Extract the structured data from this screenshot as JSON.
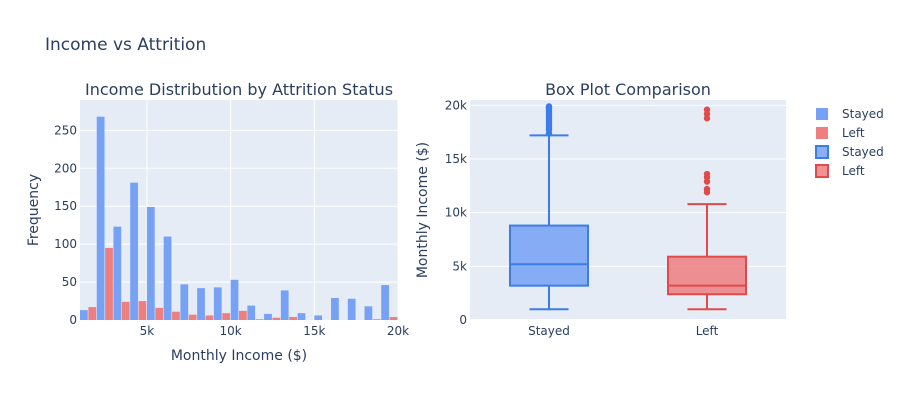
{
  "title": "Income vs Attrition",
  "legend": {
    "position": "right",
    "entries": [
      {
        "label": "Stayed",
        "kind": "histogram",
        "color": "#636efa"
      },
      {
        "label": "Left",
        "kind": "histogram",
        "color": "#ef553b"
      },
      {
        "label": "Stayed",
        "kind": "box",
        "color": "#636efa"
      },
      {
        "label": "Left",
        "kind": "box",
        "color": "#ef553b"
      }
    ]
  },
  "colors": {
    "stayed_fill": "#76a1f4",
    "stayed_stroke": "#3d7de8",
    "left_fill": "#ee7f80",
    "left_stroke": "#e04a4a",
    "plot_bg": "#e5ecf6",
    "grid": "#ffffff"
  },
  "chart_data": [
    {
      "type": "histogram",
      "title": "Income Distribution by Attrition Status",
      "xlabel": "Monthly Income ($)",
      "ylabel": "Frequency",
      "xlim": [
        1000,
        20000
      ],
      "ylim": [
        0,
        290
      ],
      "x_ticks": [
        {
          "value": 5000,
          "label": "5k"
        },
        {
          "value": 10000,
          "label": "10k"
        },
        {
          "value": 15000,
          "label": "15k"
        },
        {
          "value": 20000,
          "label": "20k"
        }
      ],
      "y_ticks": [
        {
          "value": 0,
          "label": "0"
        },
        {
          "value": 50,
          "label": "50"
        },
        {
          "value": 100,
          "label": "100"
        },
        {
          "value": 150,
          "label": "150"
        },
        {
          "value": 200,
          "label": "200"
        },
        {
          "value": 250,
          "label": "250"
        }
      ],
      "bin_starts": [
        1000,
        2000,
        3000,
        4000,
        5000,
        6000,
        7000,
        8000,
        9000,
        10000,
        11000,
        12000,
        13000,
        14000,
        15000,
        16000,
        17000,
        18000,
        19000
      ],
      "bin_width": 1000,
      "series": [
        {
          "name": "Stayed",
          "values": [
            13,
            268,
            123,
            181,
            149,
            110,
            47,
            42,
            43,
            53,
            19,
            8,
            39,
            9,
            6,
            29,
            28,
            18,
            46
          ]
        },
        {
          "name": "Left",
          "values": [
            17,
            95,
            24,
            25,
            16,
            11,
            7,
            6,
            9,
            12,
            1,
            3,
            4,
            0,
            0,
            0,
            0,
            1,
            4
          ]
        }
      ]
    },
    {
      "type": "box",
      "title": "Box Plot Comparison",
      "xlabel": "",
      "ylabel": "Monthly Income ($)",
      "ylim": [
        0,
        20500
      ],
      "categories": [
        "Stayed",
        "Left"
      ],
      "y_ticks": [
        {
          "value": 0,
          "label": "0"
        },
        {
          "value": 5000,
          "label": "5k"
        },
        {
          "value": 10000,
          "label": "10k"
        },
        {
          "value": 15000,
          "label": "15k"
        },
        {
          "value": 20000,
          "label": "20k"
        }
      ],
      "series": [
        {
          "name": "Stayed",
          "min": 1000,
          "q1": 3200,
          "median": 5200,
          "q3": 8800,
          "max": 17200,
          "outliers": [
            17400,
            17700,
            17900,
            18100,
            18300,
            18500,
            18700,
            18900,
            19100,
            19300,
            19500,
            19700,
            19800,
            19900
          ]
        },
        {
          "name": "Left",
          "min": 1000,
          "q1": 2400,
          "median": 3200,
          "q3": 5900,
          "max": 10800,
          "outliers": [
            11900,
            12200,
            12900,
            13300,
            13600,
            18800,
            19200,
            19600
          ]
        }
      ]
    }
  ]
}
